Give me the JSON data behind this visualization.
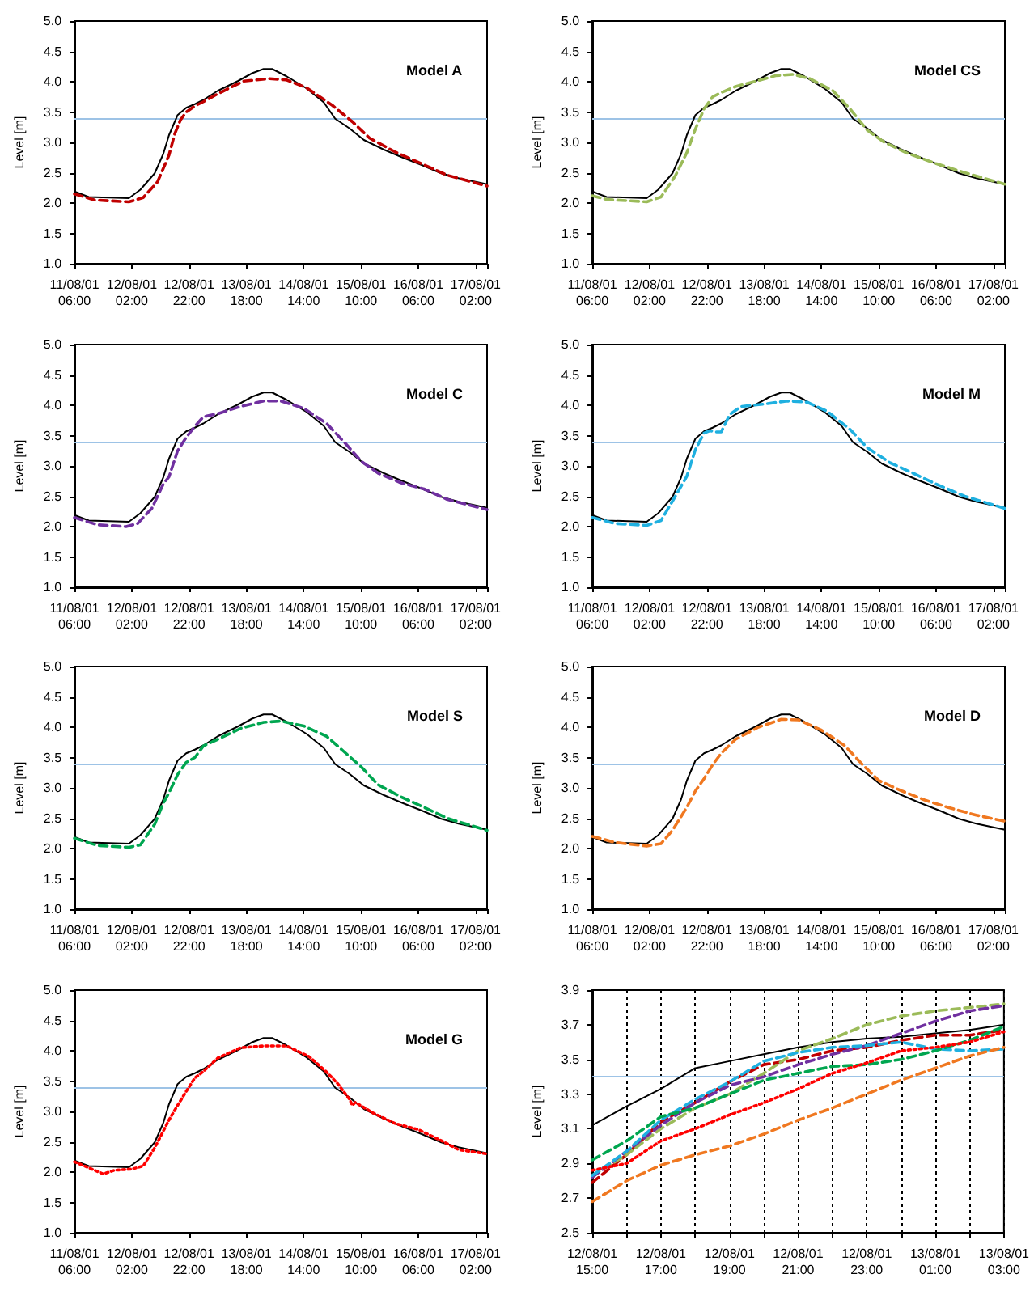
{
  "chart_data": [
    {
      "type": "line",
      "title": "Model A",
      "ylabel": "Level [m]",
      "marker": "none",
      "xlim": [
        "--08-11T06:00",
        "--08-17T06:00"
      ],
      "xticks": [
        {
          "value": "--08-11T06:00",
          "label": "11/08/01 06:00"
        },
        {
          "value": "--08-12T02:00",
          "label": "12/08/01 02:00"
        },
        {
          "value": "--08-12T22:00",
          "label": "12/08/01 22:00"
        },
        {
          "value": "--08-13T18:00",
          "label": "13/08/01 18:00"
        },
        {
          "value": "--08-14T14:00",
          "label": "14/08/01 14:00"
        },
        {
          "value": "--08-15T10:00",
          "label": "15/08/01 10:00"
        },
        {
          "value": "--08-16T06:00",
          "label": "16/08/01 06:00"
        },
        {
          "value": "--08-17T02:00",
          "label": "17/08/01 02:00"
        }
      ],
      "ylim": [
        1,
        5
      ],
      "yticks": [
        {
          "value": 1,
          "label": "1.0"
        },
        1.5,
        {
          "value": 2,
          "label": "2.0"
        },
        2.5,
        {
          "value": 3,
          "label": "3.0"
        },
        3.5,
        {
          "value": 4,
          "label": "4.0"
        },
        4.5,
        {
          "value": 5,
          "label": "5.0"
        }
      ],
      "ref_lines": [
        {
          "axis": "y",
          "value": 3.4,
          "color": "#9dc3e6"
        }
      ],
      "series": [
        {
          "color": "#000000",
          "line_style": "solid",
          "x": [
            "--08-11T06:00",
            "--08-11T11:00",
            "--08-12T01:00",
            "--08-12T05:00",
            "--08-12T10:00",
            "--08-12T13:00",
            "--08-12T15:00",
            "--08-12T16:00",
            "--08-12T18:00",
            "--08-12T21:00",
            "--08-13T00:00",
            "--08-13T03:00",
            "--08-13T08:00",
            "--08-13T15:00",
            "--08-13T20:00",
            "--08-14T00:00",
            "--08-14T03:00",
            "--08-14T08:00",
            "--08-14T15:00",
            "--08-14T21:00",
            "--08-15T01:00",
            "--08-15T06:00",
            "--08-15T11:00",
            "--08-15T18:00",
            "--08-16T00:00",
            "--08-16T07:00",
            "--08-16T14:00",
            "--08-16T20:00",
            "--08-17T06:00"
          ],
          "values": [
            2.19,
            2.1,
            2.08,
            2.22,
            2.49,
            2.81,
            3.12,
            3.23,
            3.45,
            3.57,
            3.63,
            3.7,
            3.85,
            4.01,
            4.14,
            4.21,
            4.21,
            4.09,
            3.89,
            3.66,
            3.39,
            3.23,
            3.04,
            2.88,
            2.76,
            2.63,
            2.49,
            2.41,
            2.31
          ]
        },
        {
          "color": "#c00000",
          "line_style": "dashed",
          "x": [
            "--08-11T06:00",
            "--08-11T13:00",
            "--08-12T01:00",
            "--08-12T06:00",
            "--08-12T11:00",
            "--08-12T15:00",
            "--08-12T17:00",
            "--08-12T19:00",
            "--08-12T21:00",
            "--08-13T00:00",
            "--08-13T03:00",
            "--08-13T08:00",
            "--08-13T17:00",
            "--08-14T02:00",
            "--08-14T08:00",
            "--08-14T15:00",
            "--08-15T00:00",
            "--08-15T07:00",
            "--08-15T13:00",
            "--08-15T22:00",
            "--08-16T07:00",
            "--08-16T16:00",
            "--08-17T06:00"
          ],
          "values": [
            2.15,
            2.05,
            2.02,
            2.09,
            2.35,
            2.79,
            3.14,
            3.37,
            3.5,
            3.6,
            3.67,
            3.8,
            4.01,
            4.05,
            4.03,
            3.9,
            3.61,
            3.34,
            3.07,
            2.84,
            2.65,
            2.46,
            2.28
          ]
        }
      ]
    },
    {
      "type": "line",
      "title": "Model CS",
      "ylabel": "Level [m]",
      "marker": "none",
      "xlim": [
        "--08-11T06:00",
        "--08-17T06:00"
      ],
      "xticks": [
        {
          "value": "--08-11T06:00",
          "label": "11/08/01 06:00"
        },
        {
          "value": "--08-12T02:00",
          "label": "12/08/01 02:00"
        },
        {
          "value": "--08-12T22:00",
          "label": "12/08/01 22:00"
        },
        {
          "value": "--08-13T18:00",
          "label": "13/08/01 18:00"
        },
        {
          "value": "--08-14T14:00",
          "label": "14/08/01 14:00"
        },
        {
          "value": "--08-15T10:00",
          "label": "15/08/01 10:00"
        },
        {
          "value": "--08-16T06:00",
          "label": "16/08/01 06:00"
        },
        {
          "value": "--08-17T02:00",
          "label": "17/08/01 02:00"
        }
      ],
      "ylim": [
        1,
        5
      ],
      "yticks": [
        {
          "value": 1,
          "label": "1.0"
        },
        1.5,
        {
          "value": 2,
          "label": "2.0"
        },
        2.5,
        {
          "value": 3,
          "label": "3.0"
        },
        3.5,
        {
          "value": 4,
          "label": "4.0"
        },
        4.5,
        {
          "value": 5,
          "label": "5.0"
        }
      ],
      "ref_lines": [
        {
          "axis": "y",
          "value": 3.4,
          "color": "#9dc3e6"
        }
      ],
      "series": [
        {
          "color": "#000000",
          "line_style": "solid",
          "x": [
            "--08-11T06:00",
            "--08-11T11:00",
            "--08-12T01:00",
            "--08-12T05:00",
            "--08-12T10:00",
            "--08-12T13:00",
            "--08-12T15:00",
            "--08-12T16:00",
            "--08-12T18:00",
            "--08-12T21:00",
            "--08-13T00:00",
            "--08-13T03:00",
            "--08-13T08:00",
            "--08-13T15:00",
            "--08-13T20:00",
            "--08-14T00:00",
            "--08-14T03:00",
            "--08-14T08:00",
            "--08-14T15:00",
            "--08-14T21:00",
            "--08-15T01:00",
            "--08-15T06:00",
            "--08-15T11:00",
            "--08-15T18:00",
            "--08-16T00:00",
            "--08-16T07:00",
            "--08-16T14:00",
            "--08-16T20:00",
            "--08-17T06:00"
          ],
          "values": [
            2.19,
            2.1,
            2.08,
            2.22,
            2.49,
            2.81,
            3.12,
            3.23,
            3.45,
            3.57,
            3.63,
            3.7,
            3.85,
            4.01,
            4.14,
            4.21,
            4.21,
            4.09,
            3.89,
            3.66,
            3.39,
            3.23,
            3.04,
            2.88,
            2.76,
            2.63,
            2.49,
            2.41,
            2.31
          ]
        },
        {
          "color": "#9bbb59",
          "line_style": "dashed",
          "x": [
            "--08-11T06:00",
            "--08-11T11:00",
            "--08-12T01:00",
            "--08-12T06:00",
            "--08-12T11:00",
            "--08-12T15:00",
            "--08-12T18:00",
            "--08-12T21:00",
            "--08-13T00:00",
            "--08-13T03:00",
            "--08-13T08:00",
            "--08-13T16:00",
            "--08-13T22:00",
            "--08-14T04:00",
            "--08-14T10:00",
            "--08-14T18:00",
            "--08-15T00:00",
            "--08-15T06:00",
            "--08-15T12:00",
            "--08-15T20:00",
            "--08-16T06:00",
            "--08-16T16:00",
            "--08-17T06:00"
          ],
          "values": [
            2.12,
            2.06,
            2.02,
            2.1,
            2.45,
            2.83,
            3.22,
            3.55,
            3.75,
            3.82,
            3.92,
            4.02,
            4.1,
            4.12,
            4.05,
            3.85,
            3.55,
            3.2,
            3.0,
            2.82,
            2.65,
            2.5,
            2.31
          ]
        }
      ]
    },
    {
      "type": "line",
      "title": "Model C",
      "ylabel": "Level [m]",
      "marker": "none",
      "xlim": [
        "--08-11T06:00",
        "--08-17T06:00"
      ],
      "xticks": [
        {
          "value": "--08-11T06:00",
          "label": "11/08/01 06:00"
        },
        {
          "value": "--08-12T02:00",
          "label": "12/08/01 02:00"
        },
        {
          "value": "--08-12T22:00",
          "label": "12/08/01 22:00"
        },
        {
          "value": "--08-13T18:00",
          "label": "13/08/01 18:00"
        },
        {
          "value": "--08-14T14:00",
          "label": "14/08/01 14:00"
        },
        {
          "value": "--08-15T10:00",
          "label": "15/08/01 10:00"
        },
        {
          "value": "--08-16T06:00",
          "label": "16/08/01 06:00"
        },
        {
          "value": "--08-17T02:00",
          "label": "17/08/01 02:00"
        }
      ],
      "ylim": [
        1,
        5
      ],
      "yticks": [
        {
          "value": 1,
          "label": "1.0"
        },
        1.5,
        {
          "value": 2,
          "label": "2.0"
        },
        2.5,
        {
          "value": 3,
          "label": "3.0"
        },
        3.5,
        {
          "value": 4,
          "label": "4.0"
        },
        4.5,
        {
          "value": 5,
          "label": "5.0"
        }
      ],
      "ref_lines": [
        {
          "axis": "y",
          "value": 3.4,
          "color": "#9dc3e6"
        }
      ],
      "series": [
        {
          "color": "#000000",
          "line_style": "solid",
          "x": [
            "--08-11T06:00",
            "--08-11T11:00",
            "--08-12T01:00",
            "--08-12T05:00",
            "--08-12T10:00",
            "--08-12T13:00",
            "--08-12T15:00",
            "--08-12T16:00",
            "--08-12T18:00",
            "--08-12T21:00",
            "--08-13T00:00",
            "--08-13T03:00",
            "--08-13T08:00",
            "--08-13T15:00",
            "--08-13T20:00",
            "--08-14T00:00",
            "--08-14T03:00",
            "--08-14T08:00",
            "--08-14T15:00",
            "--08-14T21:00",
            "--08-15T01:00",
            "--08-15T06:00",
            "--08-15T11:00",
            "--08-15T18:00",
            "--08-16T00:00",
            "--08-16T07:00",
            "--08-16T14:00",
            "--08-16T20:00",
            "--08-17T06:00"
          ],
          "values": [
            2.19,
            2.1,
            2.08,
            2.22,
            2.49,
            2.81,
            3.12,
            3.23,
            3.45,
            3.57,
            3.63,
            3.7,
            3.85,
            4.01,
            4.14,
            4.21,
            4.21,
            4.09,
            3.89,
            3.66,
            3.39,
            3.23,
            3.04,
            2.88,
            2.76,
            2.63,
            2.49,
            2.41,
            2.31
          ]
        },
        {
          "color": "#7030a0",
          "line_style": "dashed",
          "x": [
            "--08-11T06:00",
            "--08-11T14:00",
            "--08-12T00:00",
            "--08-12T04:00",
            "--08-12T09:00",
            "--08-12T13:00",
            "--08-12T15:00",
            "--08-12T18:00",
            "--08-12T21:00",
            "--08-13T00:00",
            "--08-13T03:00",
            "--08-13T08:00",
            "--08-13T16:00",
            "--08-14T00:00",
            "--08-14T06:00",
            "--08-14T14:00",
            "--08-14T22:00",
            "--08-15T04:00",
            "--08-15T10:00",
            "--08-15T16:00",
            "--08-16T00:00",
            "--08-16T08:00",
            "--08-16T16:00",
            "--08-17T06:00"
          ],
          "values": [
            2.15,
            2.03,
            2.0,
            2.05,
            2.3,
            2.7,
            2.82,
            3.25,
            3.47,
            3.65,
            3.81,
            3.86,
            3.98,
            4.07,
            4.07,
            3.95,
            3.7,
            3.4,
            3.08,
            2.88,
            2.72,
            2.62,
            2.45,
            2.28
          ]
        }
      ]
    },
    {
      "type": "line",
      "title": "Model M",
      "ylabel": "Level [m]",
      "marker": "none",
      "xlim": [
        "--08-11T06:00",
        "--08-17T06:00"
      ],
      "xticks": [
        {
          "value": "--08-11T06:00",
          "label": "11/08/01 06:00"
        },
        {
          "value": "--08-12T02:00",
          "label": "12/08/01 02:00"
        },
        {
          "value": "--08-12T22:00",
          "label": "12/08/01 22:00"
        },
        {
          "value": "--08-13T18:00",
          "label": "13/08/01 18:00"
        },
        {
          "value": "--08-14T14:00",
          "label": "14/08/01 14:00"
        },
        {
          "value": "--08-15T10:00",
          "label": "15/08/01 10:00"
        },
        {
          "value": "--08-16T06:00",
          "label": "16/08/01 06:00"
        },
        {
          "value": "--08-17T02:00",
          "label": "17/08/01 02:00"
        }
      ],
      "ylim": [
        1,
        5
      ],
      "yticks": [
        {
          "value": 1,
          "label": "1.0"
        },
        1.5,
        {
          "value": 2,
          "label": "2.0"
        },
        2.5,
        {
          "value": 3,
          "label": "3.0"
        },
        3.5,
        {
          "value": 4,
          "label": "4.0"
        },
        4.5,
        {
          "value": 5,
          "label": "5.0"
        }
      ],
      "ref_lines": [
        {
          "axis": "y",
          "value": 3.4,
          "color": "#9dc3e6"
        }
      ],
      "series": [
        {
          "color": "#000000",
          "line_style": "solid",
          "x": [
            "--08-11T06:00",
            "--08-11T11:00",
            "--08-12T01:00",
            "--08-12T05:00",
            "--08-12T10:00",
            "--08-12T13:00",
            "--08-12T15:00",
            "--08-12T16:00",
            "--08-12T18:00",
            "--08-12T21:00",
            "--08-13T00:00",
            "--08-13T03:00",
            "--08-13T08:00",
            "--08-13T15:00",
            "--08-13T20:00",
            "--08-14T00:00",
            "--08-14T03:00",
            "--08-14T08:00",
            "--08-14T15:00",
            "--08-14T21:00",
            "--08-15T01:00",
            "--08-15T06:00",
            "--08-15T11:00",
            "--08-15T18:00",
            "--08-16T00:00",
            "--08-16T07:00",
            "--08-16T14:00",
            "--08-16T20:00",
            "--08-17T06:00"
          ],
          "values": [
            2.19,
            2.1,
            2.08,
            2.22,
            2.49,
            2.81,
            3.12,
            3.23,
            3.45,
            3.57,
            3.63,
            3.7,
            3.85,
            4.01,
            4.14,
            4.21,
            4.21,
            4.09,
            3.89,
            3.66,
            3.39,
            3.23,
            3.04,
            2.88,
            2.76,
            2.63,
            2.49,
            2.41,
            2.31
          ]
        },
        {
          "color": "#1fb0e0",
          "line_style": "dashed",
          "x": [
            "--08-11T06:00",
            "--08-11T14:00",
            "--08-12T01:00",
            "--08-12T06:00",
            "--08-12T11:00",
            "--08-12T15:00",
            "--08-12T18:00",
            "--08-12T21:00",
            "--08-12T23:00",
            "--08-13T01:00",
            "--08-13T03:00",
            "--08-13T06:00",
            "--08-13T10:00",
            "--08-13T18:00",
            "--08-14T02:00",
            "--08-14T09:00",
            "--08-14T16:00",
            "--08-15T00:00",
            "--08-15T06:00",
            "--08-15T14:00",
            "--08-15T22:00",
            "--08-16T06:00",
            "--08-16T16:00",
            "--08-17T06:00"
          ],
          "values": [
            2.15,
            2.05,
            2.02,
            2.1,
            2.5,
            2.83,
            3.27,
            3.54,
            3.58,
            3.56,
            3.56,
            3.85,
            3.98,
            4.02,
            4.07,
            4.05,
            3.9,
            3.6,
            3.3,
            3.05,
            2.88,
            2.7,
            2.5,
            2.3
          ]
        }
      ]
    },
    {
      "type": "line",
      "title": "Model S",
      "ylabel": "Level [m]",
      "marker": "none",
      "xlim": [
        "--08-11T06:00",
        "--08-17T06:00"
      ],
      "xticks": [
        {
          "value": "--08-11T06:00",
          "label": "11/08/01 06:00"
        },
        {
          "value": "--08-12T02:00",
          "label": "12/08/01 02:00"
        },
        {
          "value": "--08-12T22:00",
          "label": "12/08/01 22:00"
        },
        {
          "value": "--08-13T18:00",
          "label": "13/08/01 18:00"
        },
        {
          "value": "--08-14T14:00",
          "label": "14/08/01 14:00"
        },
        {
          "value": "--08-15T10:00",
          "label": "15/08/01 10:00"
        },
        {
          "value": "--08-16T06:00",
          "label": "16/08/01 06:00"
        },
        {
          "value": "--08-17T02:00",
          "label": "17/08/01 02:00"
        }
      ],
      "ylim": [
        1,
        5
      ],
      "yticks": [
        {
          "value": 1,
          "label": "1.0"
        },
        1.5,
        {
          "value": 2,
          "label": "2.0"
        },
        2.5,
        {
          "value": 3,
          "label": "3.0"
        },
        3.5,
        {
          "value": 4,
          "label": "4.0"
        },
        4.5,
        {
          "value": 5,
          "label": "5.0"
        }
      ],
      "ref_lines": [
        {
          "axis": "y",
          "value": 3.4,
          "color": "#9dc3e6"
        }
      ],
      "series": [
        {
          "color": "#000000",
          "line_style": "solid",
          "x": [
            "--08-11T06:00",
            "--08-11T11:00",
            "--08-12T01:00",
            "--08-12T05:00",
            "--08-12T10:00",
            "--08-12T13:00",
            "--08-12T15:00",
            "--08-12T16:00",
            "--08-12T18:00",
            "--08-12T21:00",
            "--08-13T00:00",
            "--08-13T03:00",
            "--08-13T08:00",
            "--08-13T15:00",
            "--08-13T20:00",
            "--08-14T00:00",
            "--08-14T03:00",
            "--08-14T08:00",
            "--08-14T15:00",
            "--08-14T21:00",
            "--08-15T01:00",
            "--08-15T06:00",
            "--08-15T11:00",
            "--08-15T18:00",
            "--08-16T00:00",
            "--08-16T07:00",
            "--08-16T14:00",
            "--08-16T20:00",
            "--08-17T06:00"
          ],
          "values": [
            2.19,
            2.1,
            2.08,
            2.22,
            2.49,
            2.81,
            3.12,
            3.23,
            3.45,
            3.57,
            3.63,
            3.7,
            3.85,
            4.01,
            4.14,
            4.21,
            4.21,
            4.09,
            3.89,
            3.66,
            3.39,
            3.23,
            3.04,
            2.88,
            2.76,
            2.63,
            2.49,
            2.41,
            2.31
          ]
        },
        {
          "color": "#00a650",
          "line_style": "dashed",
          "x": [
            "--08-11T06:00",
            "--08-11T14:00",
            "--08-12T01:00",
            "--08-12T05:00",
            "--08-12T10:00",
            "--08-12T13:00",
            "--08-12T15:00",
            "--08-12T18:00",
            "--08-12T21:00",
            "--08-13T00:00",
            "--08-13T03:00",
            "--08-13T08:00",
            "--08-13T16:00",
            "--08-14T00:00",
            "--08-14T06:00",
            "--08-14T14:00",
            "--08-14T22:00",
            "--08-15T04:00",
            "--08-15T10:00",
            "--08-15T16:00",
            "--08-16T00:00",
            "--08-16T08:00",
            "--08-16T16:00",
            "--08-17T06:00"
          ],
          "values": [
            2.17,
            2.05,
            2.02,
            2.06,
            2.4,
            2.75,
            2.92,
            3.22,
            3.42,
            3.5,
            3.69,
            3.8,
            3.98,
            4.08,
            4.1,
            4.02,
            3.85,
            3.6,
            3.35,
            3.05,
            2.85,
            2.68,
            2.5,
            2.3
          ]
        }
      ]
    },
    {
      "type": "line",
      "title": "Model D",
      "ylabel": "Level [m]",
      "marker": "none",
      "xlim": [
        "--08-11T06:00",
        "--08-17T06:00"
      ],
      "xticks": [
        {
          "value": "--08-11T06:00",
          "label": "11/08/01 06:00"
        },
        {
          "value": "--08-12T02:00",
          "label": "12/08/01 02:00"
        },
        {
          "value": "--08-12T22:00",
          "label": "12/08/01 22:00"
        },
        {
          "value": "--08-13T18:00",
          "label": "13/08/01 18:00"
        },
        {
          "value": "--08-14T14:00",
          "label": "14/08/01 14:00"
        },
        {
          "value": "--08-15T10:00",
          "label": "15/08/01 10:00"
        },
        {
          "value": "--08-16T06:00",
          "label": "16/08/01 06:00"
        },
        {
          "value": "--08-17T02:00",
          "label": "17/08/01 02:00"
        }
      ],
      "ylim": [
        1,
        5
      ],
      "yticks": [
        {
          "value": 1,
          "label": "1.0"
        },
        1.5,
        {
          "value": 2,
          "label": "2.0"
        },
        2.5,
        {
          "value": 3,
          "label": "3.0"
        },
        3.5,
        {
          "value": 4,
          "label": "4.0"
        },
        4.5,
        {
          "value": 5,
          "label": "5.0"
        }
      ],
      "ref_lines": [
        {
          "axis": "y",
          "value": 3.4,
          "color": "#9dc3e6"
        }
      ],
      "series": [
        {
          "color": "#000000",
          "line_style": "solid",
          "x": [
            "--08-11T06:00",
            "--08-11T11:00",
            "--08-12T01:00",
            "--08-12T05:00",
            "--08-12T10:00",
            "--08-12T13:00",
            "--08-12T15:00",
            "--08-12T16:00",
            "--08-12T18:00",
            "--08-12T21:00",
            "--08-13T00:00",
            "--08-13T03:00",
            "--08-13T08:00",
            "--08-13T15:00",
            "--08-13T20:00",
            "--08-14T00:00",
            "--08-14T03:00",
            "--08-14T08:00",
            "--08-14T15:00",
            "--08-14T21:00",
            "--08-15T01:00",
            "--08-15T06:00",
            "--08-15T11:00",
            "--08-15T18:00",
            "--08-16T00:00",
            "--08-16T07:00",
            "--08-16T14:00",
            "--08-16T20:00",
            "--08-17T06:00"
          ],
          "values": [
            2.19,
            2.1,
            2.08,
            2.22,
            2.49,
            2.81,
            3.12,
            3.23,
            3.45,
            3.57,
            3.63,
            3.7,
            3.85,
            4.01,
            4.14,
            4.21,
            4.21,
            4.09,
            3.89,
            3.66,
            3.39,
            3.23,
            3.04,
            2.88,
            2.76,
            2.63,
            2.49,
            2.41,
            2.31
          ]
        },
        {
          "color": "#f07820",
          "line_style": "dashed",
          "x": [
            "--08-11T06:00",
            "--08-11T14:00",
            "--08-12T01:00",
            "--08-12T06:00",
            "--08-12T10:00",
            "--08-12T15:00",
            "--08-12T18:00",
            "--08-12T21:00",
            "--08-13T00:00",
            "--08-13T03:00",
            "--08-13T08:00",
            "--08-13T16:00",
            "--08-14T00:00",
            "--08-14T06:00",
            "--08-14T14:00",
            "--08-14T22:00",
            "--08-15T04:00",
            "--08-15T10:00",
            "--08-15T18:00",
            "--08-16T02:00",
            "--08-16T10:00",
            "--08-16T20:00",
            "--08-17T06:00"
          ],
          "values": [
            2.2,
            2.1,
            2.04,
            2.08,
            2.3,
            2.68,
            2.95,
            3.15,
            3.38,
            3.57,
            3.8,
            4.0,
            4.13,
            4.12,
            3.95,
            3.7,
            3.4,
            3.12,
            2.95,
            2.8,
            2.68,
            2.55,
            2.45
          ]
        }
      ]
    },
    {
      "type": "line",
      "title": "Model G",
      "ylabel": "Level [m]",
      "marker": "none",
      "xlim": [
        "--08-11T06:00",
        "--08-17T06:00"
      ],
      "xticks": [
        {
          "value": "--08-11T06:00",
          "label": "11/08/01 06:00"
        },
        {
          "value": "--08-12T02:00",
          "label": "12/08/01 02:00"
        },
        {
          "value": "--08-12T22:00",
          "label": "12/08/01 22:00"
        },
        {
          "value": "--08-13T18:00",
          "label": "13/08/01 18:00"
        },
        {
          "value": "--08-14T14:00",
          "label": "14/08/01 14:00"
        },
        {
          "value": "--08-15T10:00",
          "label": "15/08/01 10:00"
        },
        {
          "value": "--08-16T06:00",
          "label": "16/08/01 06:00"
        },
        {
          "value": "--08-17T02:00",
          "label": "17/08/01 02:00"
        }
      ],
      "ylim": [
        1,
        5
      ],
      "yticks": [
        {
          "value": 1,
          "label": "1.0"
        },
        1.5,
        {
          "value": 2,
          "label": "2.0"
        },
        2.5,
        {
          "value": 3,
          "label": "3.0"
        },
        3.5,
        {
          "value": 4,
          "label": "4.0"
        },
        4.5,
        {
          "value": 5,
          "label": "5.0"
        }
      ],
      "ref_lines": [
        {
          "axis": "y",
          "value": 3.4,
          "color": "#9dc3e6"
        }
      ],
      "series": [
        {
          "color": "#000000",
          "line_style": "solid",
          "x": [
            "--08-11T06:00",
            "--08-11T11:00",
            "--08-12T01:00",
            "--08-12T05:00",
            "--08-12T10:00",
            "--08-12T13:00",
            "--08-12T15:00",
            "--08-12T16:00",
            "--08-12T18:00",
            "--08-12T21:00",
            "--08-13T00:00",
            "--08-13T03:00",
            "--08-13T08:00",
            "--08-13T15:00",
            "--08-13T20:00",
            "--08-14T00:00",
            "--08-14T03:00",
            "--08-14T08:00",
            "--08-14T15:00",
            "--08-14T21:00",
            "--08-15T01:00",
            "--08-15T06:00",
            "--08-15T11:00",
            "--08-15T18:00",
            "--08-16T00:00",
            "--08-16T07:00",
            "--08-16T14:00",
            "--08-16T20:00",
            "--08-17T06:00"
          ],
          "values": [
            2.19,
            2.1,
            2.08,
            2.22,
            2.49,
            2.81,
            3.12,
            3.23,
            3.45,
            3.57,
            3.63,
            3.7,
            3.85,
            4.01,
            4.14,
            4.21,
            4.21,
            4.09,
            3.89,
            3.66,
            3.39,
            3.23,
            3.04,
            2.88,
            2.76,
            2.63,
            2.49,
            2.41,
            2.31
          ]
        },
        {
          "color": "#ff0000",
          "line_style": "dotted",
          "x": [
            "--08-11T06:00",
            "--08-11T12:00",
            "--08-11T16:00",
            "--08-11T20:00",
            "--08-12T02:00",
            "--08-12T06:00",
            "--08-12T10:00",
            "--08-12T15:00",
            "--08-12T18:00",
            "--08-12T21:00",
            "--08-13T00:00",
            "--08-13T03:00",
            "--08-13T08:00",
            "--08-13T16:00",
            "--08-14T00:00",
            "--08-14T08:00",
            "--08-14T16:00",
            "--08-14T22:00",
            "--08-15T02:00",
            "--08-15T06:00",
            "--08-15T07:00",
            "--08-15T08:00",
            "--08-15T14:00",
            "--08-15T22:00",
            "--08-16T06:00",
            "--08-16T14:00",
            "--08-16T20:00",
            "--08-17T06:00"
          ],
          "values": [
            2.17,
            2.05,
            1.97,
            2.03,
            2.05,
            2.1,
            2.4,
            2.86,
            3.1,
            3.33,
            3.55,
            3.66,
            3.88,
            4.05,
            4.08,
            4.08,
            3.9,
            3.65,
            3.45,
            3.2,
            3.1,
            3.15,
            2.98,
            2.8,
            2.7,
            2.52,
            2.37,
            2.3
          ]
        }
      ]
    },
    {
      "type": "line",
      "ylabel": "Level [m]",
      "marker": "none",
      "grid": "x",
      "xlim": [
        "--08-12T15:00",
        "--08-13T03:00"
      ],
      "xticks": [
        {
          "value": "--08-12T15:00",
          "label": "12/08/01 15:00"
        },
        {
          "value": "--08-12T16:00",
          "label": null
        },
        {
          "value": "--08-12T17:00",
          "label": "12/08/01 17:00"
        },
        {
          "value": "--08-12T18:00",
          "label": null
        },
        {
          "value": "--08-12T19:00",
          "label": "12/08/01 19:00"
        },
        {
          "value": "--08-12T20:00",
          "label": null
        },
        {
          "value": "--08-12T21:00",
          "label": "12/08/01 21:00"
        },
        {
          "value": "--08-12T22:00",
          "label": null
        },
        {
          "value": "--08-12T23:00",
          "label": "12/08/01 23:00"
        },
        {
          "value": "--08-13T00:00",
          "label": null
        },
        {
          "value": "--08-13T01:00",
          "label": "13/08/01 01:00"
        },
        {
          "value": "--08-13T02:00",
          "label": null
        },
        {
          "value": "--08-13T03:00",
          "label": "13/08/01 03:00"
        }
      ],
      "ylim": [
        2.5,
        3.9
      ],
      "yticks": [
        2.5,
        2.7,
        2.9,
        3.1,
        3.3,
        3.5,
        3.7,
        3.9
      ],
      "ref_lines": [
        {
          "axis": "y",
          "value": 3.4,
          "color": "#9dc3e6"
        }
      ],
      "x": [
        "--08-12T15:00",
        "--08-12T16:00",
        "--08-12T17:00",
        "--08-12T18:00",
        "--08-12T19:00",
        "--08-12T20:00",
        "--08-12T21:00",
        "--08-12T22:00",
        "--08-12T23:00",
        "--08-13T00:00",
        "--08-13T01:00",
        "--08-13T02:00",
        "--08-13T03:00"
      ],
      "series": [
        {
          "color": "#000000",
          "line_style": "solid",
          "values": [
            3.12,
            3.23,
            3.33,
            3.45,
            3.49,
            3.53,
            3.57,
            3.6,
            3.62,
            3.63,
            3.65,
            3.67,
            3.7
          ]
        },
        {
          "color": "#c00000",
          "line_style": "dashed",
          "values": [
            2.79,
            2.95,
            3.14,
            3.25,
            3.37,
            3.47,
            3.5,
            3.55,
            3.57,
            3.61,
            3.64,
            3.64,
            3.67
          ]
        },
        {
          "color": "#9bbb59",
          "line_style": "dashed",
          "values": [
            2.83,
            2.95,
            3.1,
            3.22,
            3.3,
            3.42,
            3.55,
            3.62,
            3.7,
            3.75,
            3.78,
            3.8,
            3.82
          ]
        },
        {
          "color": "#7030a0",
          "line_style": "dashed",
          "values": [
            2.82,
            2.97,
            3.12,
            3.25,
            3.35,
            3.4,
            3.47,
            3.53,
            3.58,
            3.65,
            3.72,
            3.78,
            3.81
          ]
        },
        {
          "color": "#1fb0e0",
          "line_style": "dashed",
          "values": [
            2.83,
            2.97,
            3.15,
            3.27,
            3.37,
            3.49,
            3.54,
            3.57,
            3.58,
            3.6,
            3.56,
            3.55,
            3.56
          ]
        },
        {
          "color": "#00a650",
          "line_style": "dashed",
          "values": [
            2.92,
            3.03,
            3.17,
            3.22,
            3.3,
            3.38,
            3.42,
            3.46,
            3.47,
            3.5,
            3.55,
            3.61,
            3.69
          ]
        },
        {
          "color": "#f07820",
          "line_style": "dashed",
          "values": [
            2.68,
            2.8,
            2.89,
            2.95,
            3.0,
            3.07,
            3.15,
            3.22,
            3.3,
            3.38,
            3.45,
            3.52,
            3.57
          ]
        },
        {
          "color": "#ff0000",
          "line_style": "dotted",
          "values": [
            2.86,
            2.9,
            3.03,
            3.1,
            3.18,
            3.25,
            3.33,
            3.42,
            3.48,
            3.55,
            3.57,
            3.6,
            3.66
          ]
        }
      ]
    }
  ]
}
